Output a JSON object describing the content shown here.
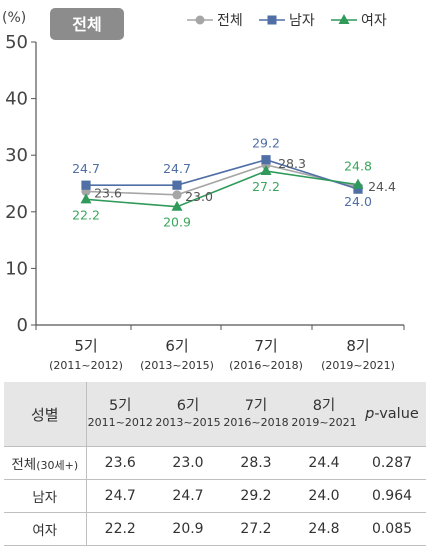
{
  "chart_data": {
    "type": "line",
    "title": "전체",
    "unit_label": "(%)",
    "ylim": [
      0,
      50
    ],
    "yticks": [
      0,
      10,
      20,
      30,
      40,
      50
    ],
    "grid": false,
    "legend_position": "top-right",
    "categories": [
      "5기",
      "6기",
      "7기",
      "8기"
    ],
    "periods": [
      "(2011~2012)",
      "(2013~2015)",
      "(2016~2018)",
      "(2019~2021)"
    ],
    "series": [
      {
        "name": "전체",
        "values": [
          23.6,
          23.0,
          28.3,
          24.4
        ],
        "color": "#a6a6a6",
        "marker": "circle"
      },
      {
        "name": "남자",
        "values": [
          24.7,
          24.7,
          29.2,
          24.0
        ],
        "color": "#4f6fa6",
        "marker": "square"
      },
      {
        "name": "여자",
        "values": [
          22.2,
          20.9,
          27.2,
          24.8
        ],
        "color": "#2f9a5a",
        "marker": "triangle"
      }
    ],
    "label_colors": {
      "전체": "#555555",
      "남자": "#4f6fa6",
      "여자": "#3aa65c"
    }
  },
  "table": {
    "first_header": "성별",
    "columns": [
      {
        "main": "5기",
        "sub": "2011~2012"
      },
      {
        "main": "6기",
        "sub": "2013~2015"
      },
      {
        "main": "7기",
        "sub": "2016~2018"
      },
      {
        "main": "8기",
        "sub": "2019~2021"
      }
    ],
    "pvalue_p": "p",
    "pvalue_rest": "-value",
    "rows": [
      {
        "label": "전체",
        "label_suffix": "(30세+)",
        "values": [
          "23.6",
          "23.0",
          "28.3",
          "24.4"
        ],
        "pvalue": "0.287"
      },
      {
        "label": "남자",
        "label_suffix": "",
        "values": [
          "24.7",
          "24.7",
          "29.2",
          "24.0"
        ],
        "pvalue": "0.964"
      },
      {
        "label": "여자",
        "label_suffix": "",
        "values": [
          "22.2",
          "20.9",
          "27.2",
          "24.8"
        ],
        "pvalue": "0.085"
      }
    ]
  }
}
